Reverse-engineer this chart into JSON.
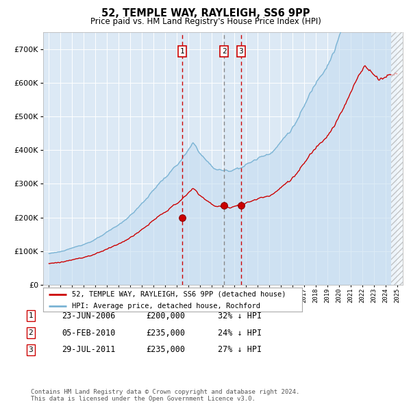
{
  "title": "52, TEMPLE WAY, RAYLEIGH, SS6 9PP",
  "subtitle": "Price paid vs. HM Land Registry's House Price Index (HPI)",
  "legend_line1": "52, TEMPLE WAY, RAYLEIGH, SS6 9PP (detached house)",
  "legend_line2": "HPI: Average price, detached house, Rochford",
  "hpi_color": "#7ab3d4",
  "hpi_fill": "#c5ddf0",
  "price_color": "#cc0000",
  "plot_bg": "#dce9f5",
  "grid_color": "#ffffff",
  "transaction_table": [
    {
      "num": "1",
      "date": "23-JUN-2006",
      "price": "£200,000",
      "hpi": "32% ↓ HPI"
    },
    {
      "num": "2",
      "date": "05-FEB-2010",
      "price": "£235,000",
      "hpi": "24% ↓ HPI"
    },
    {
      "num": "3",
      "date": "29-JUL-2011",
      "price": "£235,000",
      "hpi": "27% ↓ HPI"
    }
  ],
  "footer": "Contains HM Land Registry data © Crown copyright and database right 2024.\nThis data is licensed under the Open Government Licence v3.0.",
  "ylim": [
    0,
    750000
  ],
  "yticks": [
    0,
    100000,
    200000,
    300000,
    400000,
    500000,
    600000,
    700000
  ],
  "xstart_year": 1995,
  "xend_year": 2025,
  "t1_year": 2006.47,
  "t1_price": 200000,
  "t2_year": 2010.09,
  "t2_price": 235000,
  "t3_year": 2011.57,
  "t3_price": 235000
}
